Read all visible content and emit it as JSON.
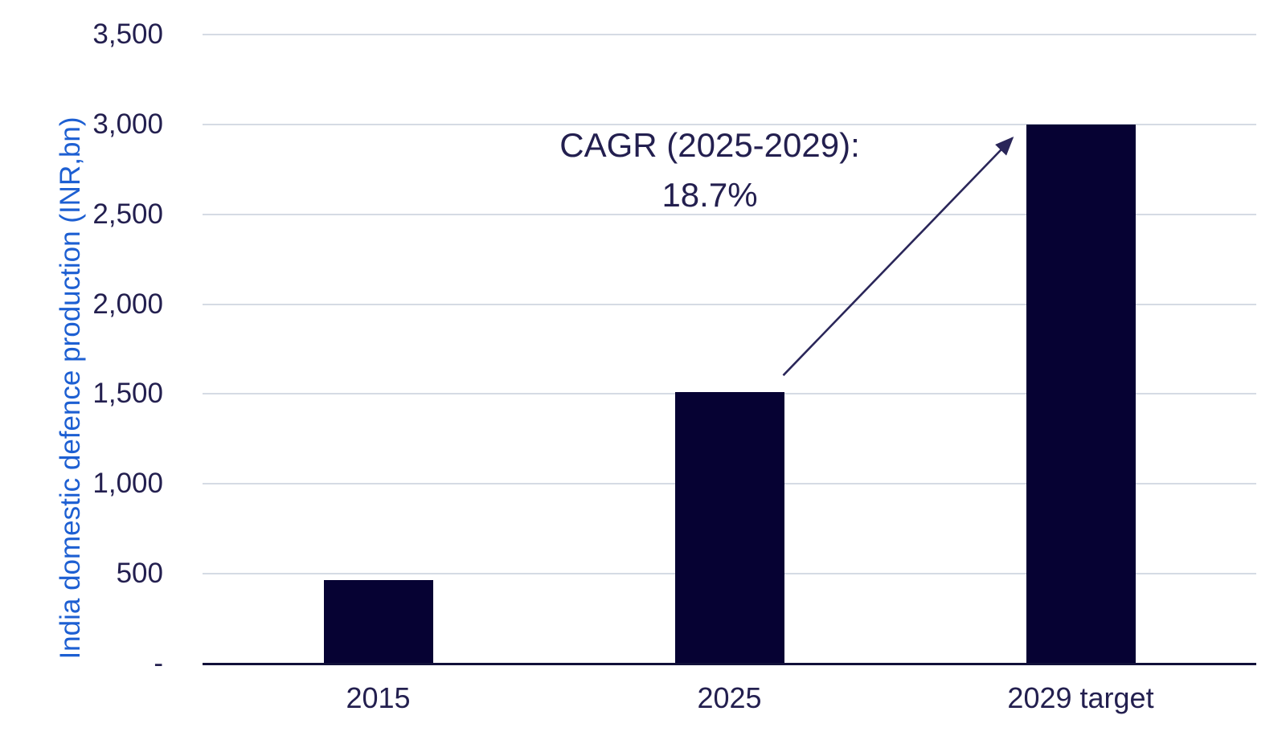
{
  "chart_data": {
    "type": "bar",
    "title": "",
    "categories": [
      "2015",
      "2025",
      "2029 target"
    ],
    "values": [
      465,
      1510,
      3000
    ],
    "xlabel": "",
    "ylabel": "India domestic defence production (INR,bn)",
    "ylim": [
      0,
      3500
    ],
    "ytick_step": 500,
    "ytick_labels": [
      "-",
      "500",
      "1,000",
      "1,500",
      "2,000",
      "2,500",
      "3,000",
      "3,500"
    ],
    "grid": "horizontal",
    "legend": "none",
    "annotation": {
      "line1": "CAGR (2025-2029):",
      "line2": "18.7%",
      "arrow_from_category": "2025",
      "arrow_to_category": "2029 target"
    },
    "colors": {
      "bar": "#060233",
      "axis_text": "#231f4f",
      "ylabel_text": "#1d5fd2",
      "gridline": "#d5dbe4",
      "axis_line": "#11103a",
      "arrow": "#2a2659",
      "background": "#ffffff"
    }
  }
}
